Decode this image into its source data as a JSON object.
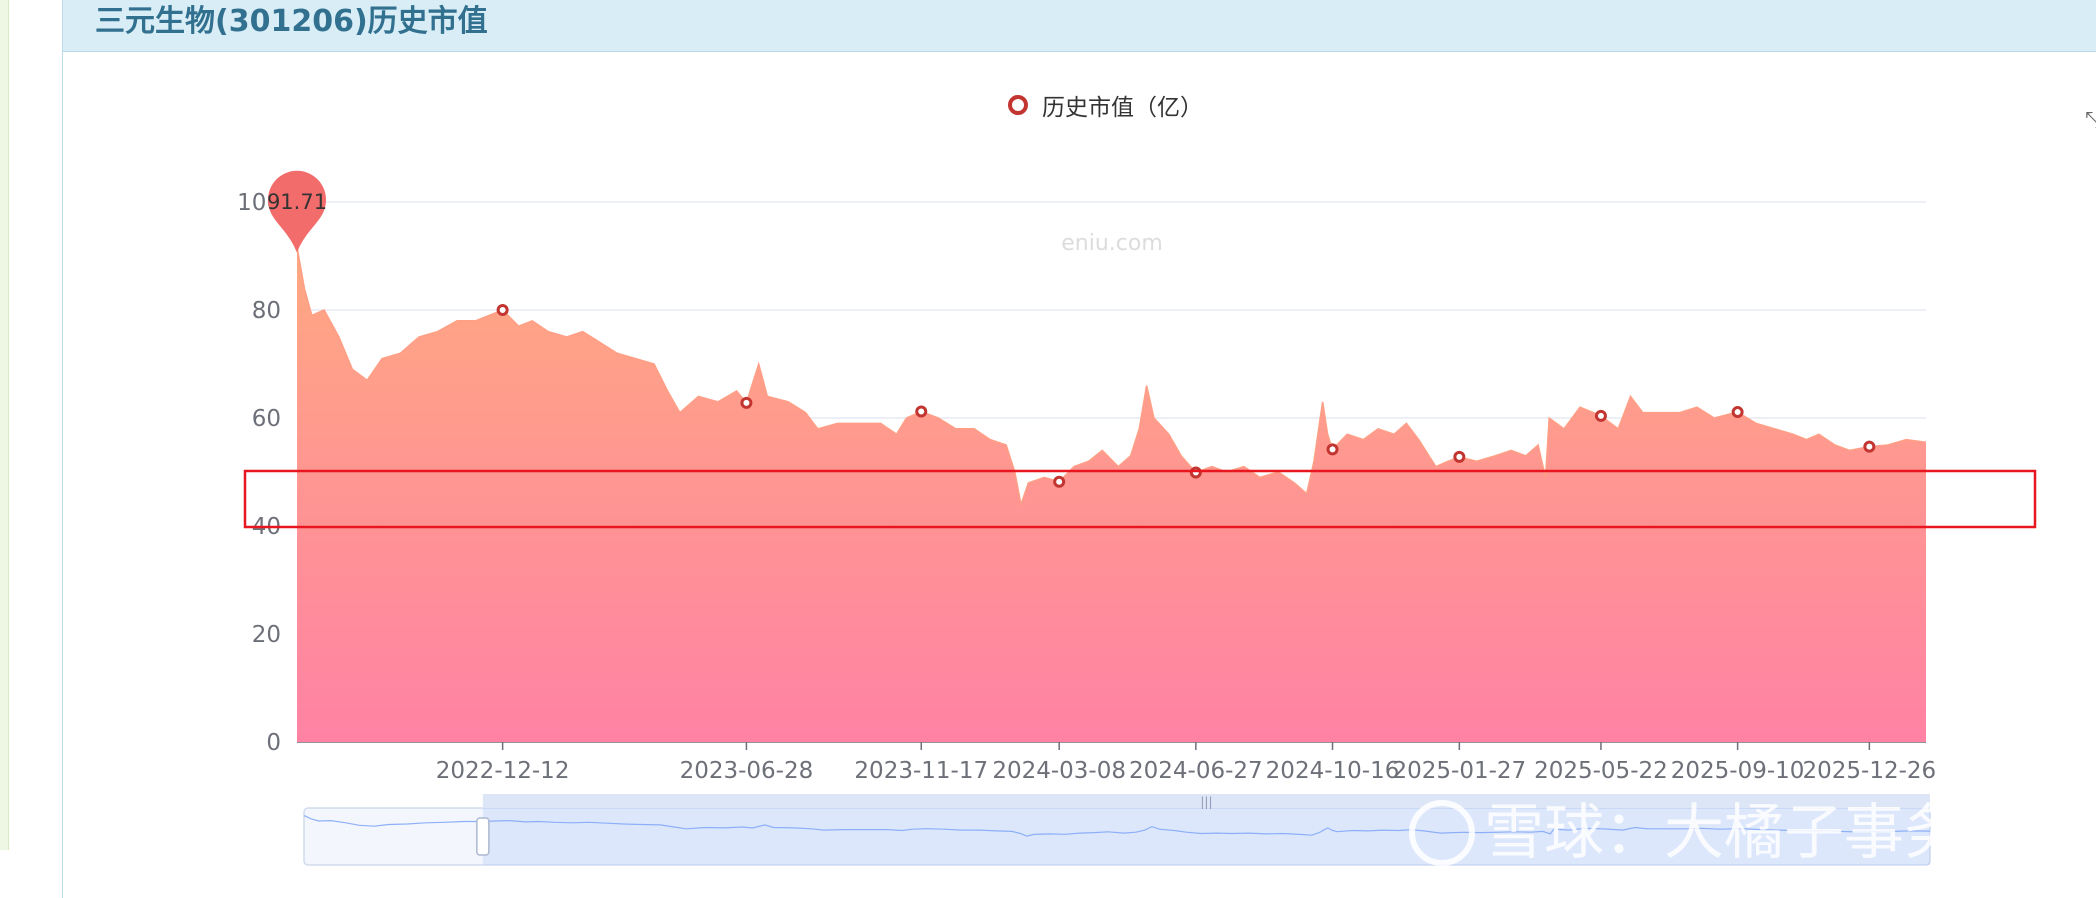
{
  "header": {
    "title": "三元生物(301206)历史市值"
  },
  "legend": {
    "label": "历史市值（亿）",
    "color": "#c23531"
  },
  "watermarks": {
    "chart": "eniu.com",
    "overlay": "雪球：大橘子事务所"
  },
  "max_marker": {
    "label": "91.71",
    "color": "#f36c6c"
  },
  "chart_data": {
    "type": "area",
    "title": "",
    "series_name": "历史市值（亿）",
    "xlabel": "",
    "ylabel": "",
    "ylim": [
      0,
      100
    ],
    "y_ticks": [
      "0",
      "20",
      "40",
      "60",
      "80",
      "100"
    ],
    "x_ticks": [
      "2022-12-12",
      "2023-06-28",
      "2023-11-17",
      "2024-03-08",
      "2024-06-27",
      "2024-10-16",
      "2025-01-27",
      "2025-05-22",
      "2025-09-10",
      "2025-12-26"
    ],
    "x_start": "2022-06-28",
    "x_end": "2026-02-10",
    "points": [
      [
        "2022-06-28",
        91.71
      ],
      [
        "2022-07-04",
        84
      ],
      [
        "2022-07-10",
        79
      ],
      [
        "2022-07-20",
        80
      ],
      [
        "2022-08-01",
        75
      ],
      [
        "2022-08-12",
        69
      ],
      [
        "2022-08-24",
        67
      ],
      [
        "2022-09-05",
        71
      ],
      [
        "2022-09-20",
        72
      ],
      [
        "2022-10-05",
        75
      ],
      [
        "2022-10-20",
        76
      ],
      [
        "2022-11-05",
        78
      ],
      [
        "2022-11-20",
        78
      ],
      [
        "2022-12-01",
        79
      ],
      [
        "2022-12-12",
        80
      ],
      [
        "2022-12-25",
        77
      ],
      [
        "2023-01-05",
        78
      ],
      [
        "2023-01-18",
        76
      ],
      [
        "2023-02-02",
        75
      ],
      [
        "2023-02-15",
        76
      ],
      [
        "2023-03-01",
        74
      ],
      [
        "2023-03-15",
        72
      ],
      [
        "2023-03-30",
        71
      ],
      [
        "2023-04-14",
        70
      ],
      [
        "2023-04-25",
        65
      ],
      [
        "2023-05-05",
        61
      ],
      [
        "2023-05-20",
        64
      ],
      [
        "2023-06-05",
        63
      ],
      [
        "2023-06-20",
        65
      ],
      [
        "2023-06-28",
        62.8
      ],
      [
        "2023-07-08",
        70
      ],
      [
        "2023-07-15",
        64
      ],
      [
        "2023-08-01",
        63
      ],
      [
        "2023-08-15",
        61
      ],
      [
        "2023-08-25",
        58
      ],
      [
        "2023-09-10",
        59
      ],
      [
        "2023-09-30",
        59
      ],
      [
        "2023-10-15",
        59
      ],
      [
        "2023-10-28",
        57
      ],
      [
        "2023-11-05",
        60
      ],
      [
        "2023-11-17",
        61.2
      ],
      [
        "2023-12-01",
        60
      ],
      [
        "2023-12-15",
        58
      ],
      [
        "2023-12-30",
        58
      ],
      [
        "2024-01-12",
        56
      ],
      [
        "2024-01-25",
        55
      ],
      [
        "2024-02-01",
        50
      ],
      [
        "2024-02-06",
        44
      ],
      [
        "2024-02-12",
        48
      ],
      [
        "2024-02-25",
        49
      ],
      [
        "2024-03-08",
        48.2
      ],
      [
        "2024-03-20",
        51
      ],
      [
        "2024-04-01",
        52
      ],
      [
        "2024-04-12",
        54
      ],
      [
        "2024-04-25",
        51
      ],
      [
        "2024-05-05",
        53
      ],
      [
        "2024-05-12",
        58
      ],
      [
        "2024-05-18",
        66
      ],
      [
        "2024-05-24",
        60
      ],
      [
        "2024-06-05",
        57
      ],
      [
        "2024-06-15",
        53
      ],
      [
        "2024-06-27",
        49.9
      ],
      [
        "2024-07-10",
        51
      ],
      [
        "2024-07-22",
        50
      ],
      [
        "2024-08-05",
        51
      ],
      [
        "2024-08-18",
        49
      ],
      [
        "2024-09-02",
        50
      ],
      [
        "2024-09-15",
        48
      ],
      [
        "2024-09-25",
        46
      ],
      [
        "2024-10-01",
        52
      ],
      [
        "2024-10-06",
        60
      ],
      [
        "2024-10-08",
        63
      ],
      [
        "2024-10-12",
        57
      ],
      [
        "2024-10-16",
        54.2
      ],
      [
        "2024-10-28",
        57
      ],
      [
        "2024-11-10",
        56
      ],
      [
        "2024-11-22",
        58
      ],
      [
        "2024-12-05",
        57
      ],
      [
        "2024-12-15",
        59
      ],
      [
        "2024-12-25",
        56
      ],
      [
        "2025-01-08",
        51
      ],
      [
        "2025-01-18",
        52
      ],
      [
        "2025-01-27",
        52.8
      ],
      [
        "2025-02-10",
        52
      ],
      [
        "2025-02-25",
        53
      ],
      [
        "2025-03-10",
        54
      ],
      [
        "2025-03-22",
        53
      ],
      [
        "2025-04-01",
        55
      ],
      [
        "2025-04-07",
        49
      ],
      [
        "2025-04-10",
        60
      ],
      [
        "2025-04-22",
        58
      ],
      [
        "2025-05-05",
        62
      ],
      [
        "2025-05-22",
        60.4
      ],
      [
        "2025-06-05",
        58
      ],
      [
        "2025-06-15",
        64
      ],
      [
        "2025-06-25",
        61
      ],
      [
        "2025-07-10",
        61
      ],
      [
        "2025-07-25",
        61
      ],
      [
        "2025-08-08",
        62
      ],
      [
        "2025-08-22",
        60
      ],
      [
        "2025-09-10",
        61.1
      ],
      [
        "2025-09-25",
        59
      ],
      [
        "2025-10-10",
        58
      ],
      [
        "2025-10-25",
        57
      ],
      [
        "2025-11-05",
        56
      ],
      [
        "2025-11-15",
        57
      ],
      [
        "2025-11-28",
        55
      ],
      [
        "2025-12-10",
        54
      ],
      [
        "2025-12-26",
        54.7
      ],
      [
        "2026-01-10",
        55
      ],
      [
        "2026-01-25",
        56
      ],
      [
        "2026-02-10",
        55.5
      ]
    ],
    "mark_points": [
      [
        "2022-12-12",
        80
      ],
      [
        "2023-06-28",
        62.8
      ],
      [
        "2023-11-17",
        61.2
      ],
      [
        "2024-03-08",
        48.2
      ],
      [
        "2024-06-27",
        49.9
      ],
      [
        "2024-10-16",
        54.2
      ],
      [
        "2025-01-27",
        52.8
      ],
      [
        "2025-05-22",
        60.4
      ],
      [
        "2025-09-10",
        61.1
      ],
      [
        "2025-12-26",
        54.7
      ]
    ],
    "gradient": [
      "#ffa881",
      "#ff82a4"
    ],
    "grid": true,
    "highlight_band": [
      40,
      50
    ],
    "zoom_window": [
      0.11,
      1.0
    ]
  }
}
